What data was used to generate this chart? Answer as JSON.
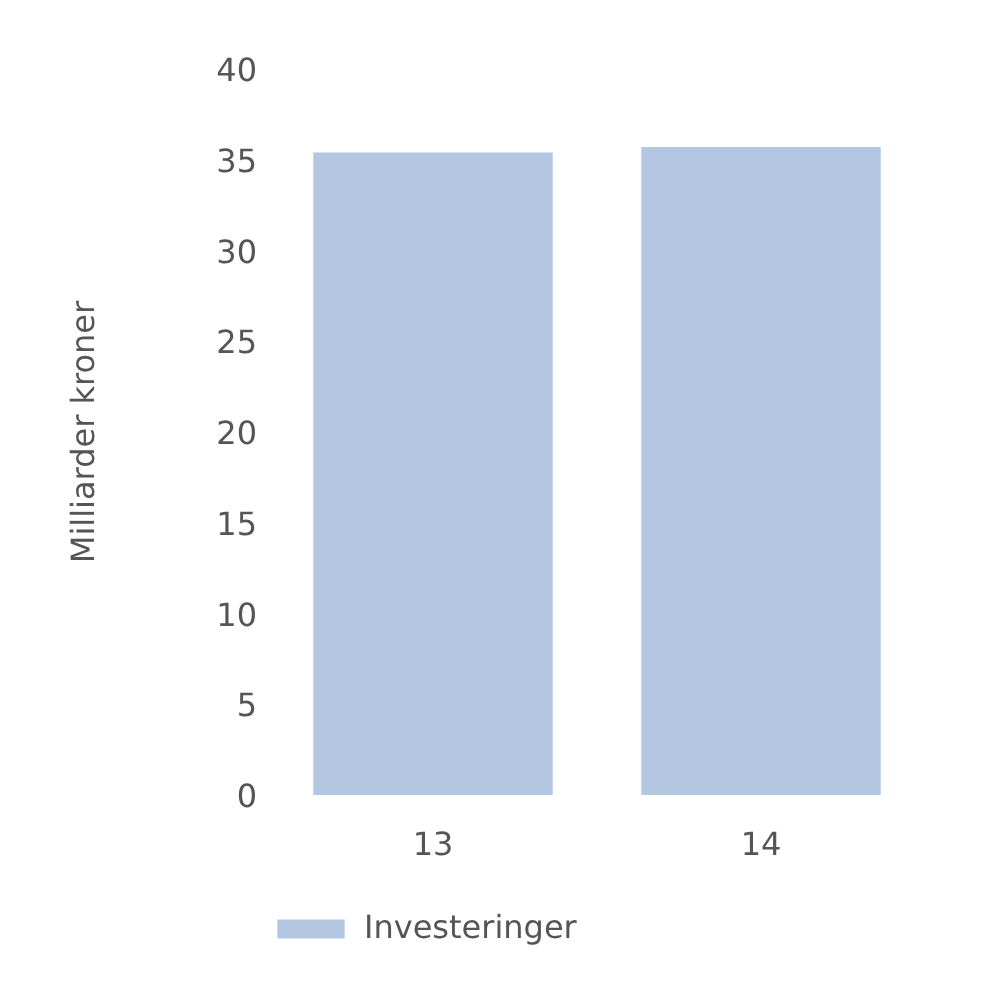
{
  "chart_data": {
    "type": "bar",
    "categories": [
      "13",
      "14"
    ],
    "series": [
      {
        "name": "Investeringer",
        "color": "#b3c6e2",
        "values": [
          35.4,
          35.7
        ]
      }
    ],
    "ylabel": "Milliarder kroner",
    "ylim": [
      0,
      40
    ],
    "yticks": [
      0,
      5,
      10,
      15,
      20,
      25,
      30,
      35,
      40
    ],
    "grid": false,
    "legend": "bottom left"
  }
}
